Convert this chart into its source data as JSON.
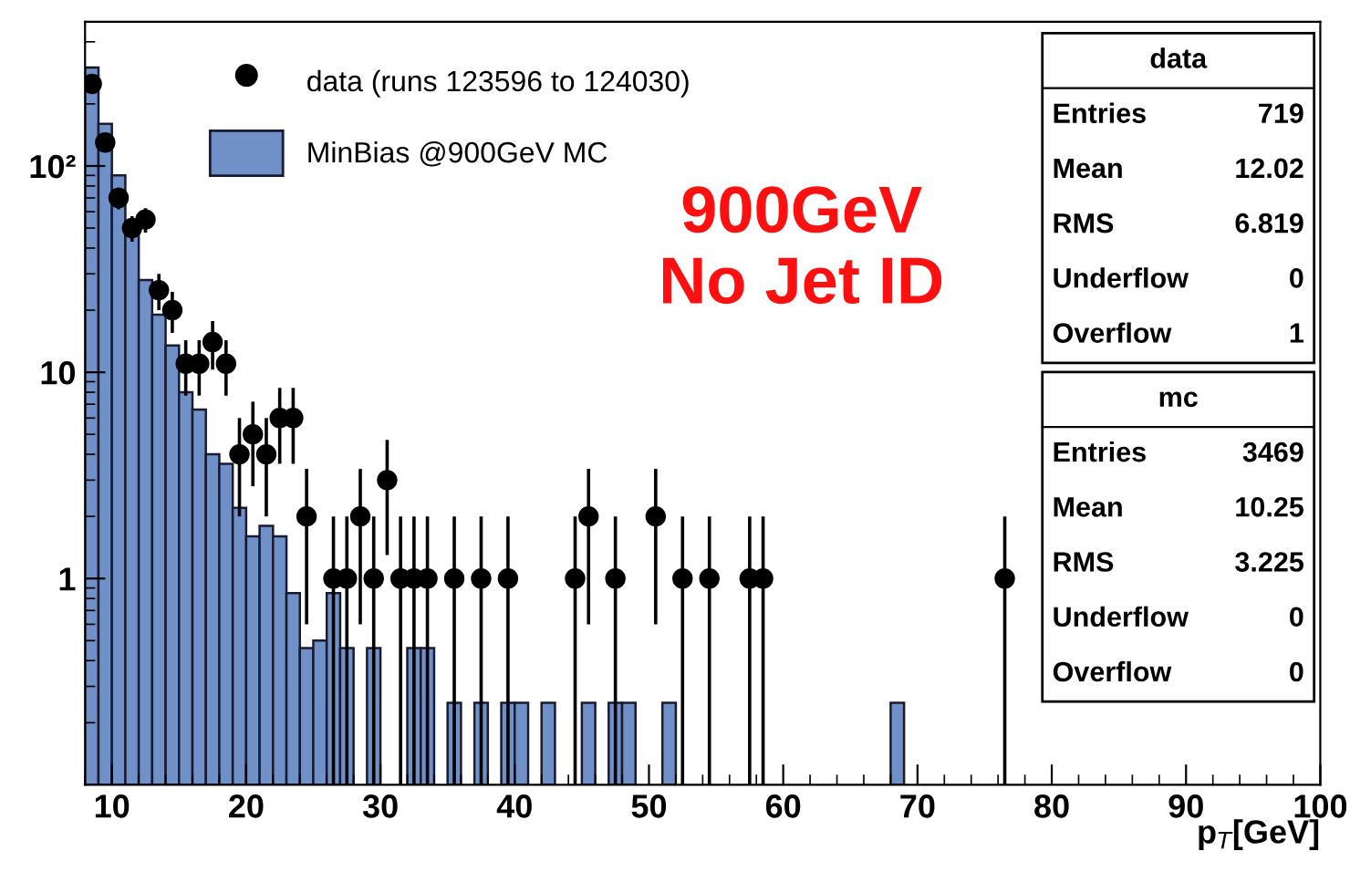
{
  "chart_data": {
    "type": "histogram",
    "xlabel": "p$_{T}$[GeV]",
    "bins": [
      8,
      9,
      10,
      11,
      12,
      13,
      14,
      15,
      16,
      17,
      18,
      19,
      20,
      21,
      22,
      23,
      24,
      25,
      26,
      27,
      28,
      29,
      30,
      31,
      32,
      33,
      34,
      35,
      36,
      37,
      38,
      39,
      40,
      41,
      42,
      43,
      44,
      45,
      46,
      47,
      48,
      49,
      50,
      51,
      52,
      53,
      54,
      55,
      56,
      57,
      58,
      59,
      60,
      61,
      62,
      63,
      64,
      65,
      66,
      67,
      68,
      69
    ],
    "series": [
      {
        "name": "MinBias @900GeV MC",
        "color": "#7090c8",
        "values": [
          300,
          160,
          90,
          47,
          28,
          19,
          13.5,
          8,
          6.6,
          4,
          3.6,
          2.2,
          1.6,
          1.8,
          1.6,
          0.85,
          0.46,
          0.5,
          0.85,
          0.46,
          null,
          0.46,
          null,
          null,
          0.46,
          0.46,
          null,
          0.25,
          null,
          0.25,
          null,
          0.25,
          0.25,
          null,
          0.25,
          null,
          null,
          0.25,
          null,
          0.25,
          0.25,
          null,
          null,
          0.25,
          null,
          null,
          null,
          null,
          null,
          null,
          null,
          null,
          null,
          null,
          null,
          null,
          null,
          null,
          null,
          null,
          0.25
        ]
      },
      {
        "name": "data (runs 123596 to 124030)",
        "type": "scatter",
        "color": "#000000",
        "x": [
          8.5,
          9.5,
          10.5,
          11.5,
          12.5,
          13.5,
          14.5,
          15.5,
          16.5,
          17.5,
          18.5,
          19.5,
          20.5,
          21.5,
          22.5,
          23.5,
          24.5,
          26.5,
          27.5,
          28.5,
          29.5,
          30.5,
          31.5,
          32.5,
          33.5,
          35.5,
          37.5,
          39.5,
          44.5,
          45.5,
          47.5,
          50.5,
          52.5,
          54.5,
          57.5,
          58.5,
          76.5
        ],
        "values": [
          250,
          130,
          70,
          50,
          55,
          25,
          20,
          11,
          11,
          14,
          11,
          4,
          5,
          4,
          6,
          6,
          2,
          1,
          1,
          2,
          1,
          3,
          1,
          1,
          1,
          1,
          1,
          1,
          1,
          2,
          1,
          2,
          1,
          1,
          1,
          1,
          1
        ],
        "errors": [
          15.8,
          11.4,
          8.4,
          7.1,
          7.4,
          5,
          4.5,
          3.3,
          3.3,
          3.7,
          3.3,
          2,
          2.2,
          2,
          2.4,
          2.4,
          1.4,
          [
            0.1,
            2
          ],
          [
            0.1,
            2
          ],
          1.4,
          [
            0.1,
            2
          ],
          1.7,
          [
            0.1,
            2
          ],
          [
            0.1,
            2
          ],
          [
            0.1,
            2
          ],
          [
            0.1,
            2
          ],
          [
            0.1,
            2
          ],
          [
            0.1,
            2
          ],
          [
            0.1,
            2
          ],
          1.4,
          [
            0.1,
            2
          ],
          1.4,
          [
            0.1,
            2
          ],
          [
            0.1,
            2
          ],
          [
            0.1,
            2
          ],
          [
            0.1,
            2
          ],
          [
            0.1,
            2
          ]
        ]
      }
    ],
    "xlim": [
      8,
      100
    ],
    "xticks": [
      10,
      20,
      30,
      40,
      50,
      60,
      70,
      80,
      90,
      100
    ],
    "ylim": [
      0.1,
      500
    ],
    "log": true,
    "yticks": [
      1,
      10,
      {
        "value": 100,
        "label": "10²"
      }
    ],
    "legend": "top left",
    "marker": "circle",
    "grid": false,
    "annotations": [
      "900GeV\nNo Jet ID",
      "data\nEntries 719\nMean 12.02\nRMS 6.819\nUnderflow 0\nOverflow 1",
      "mc\nEntries 3469\nMean 10.25\nRMS 3.225\nUnderflow 0\nOverflow 0"
    ]
  }
}
